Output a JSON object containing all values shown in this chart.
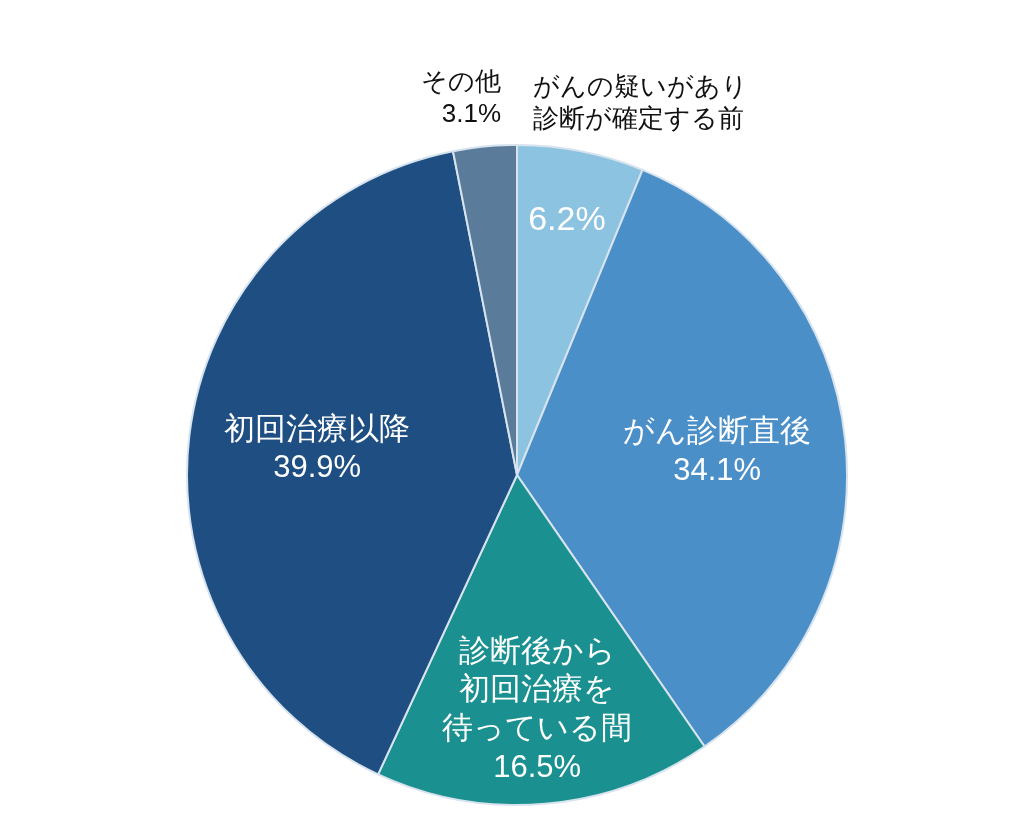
{
  "chart_data": {
    "type": "pie",
    "categories": [
      "がんの疑いがあり診断が確定する前",
      "がん診断直後",
      "診断後から初回治療を待っている間",
      "初回治療以降",
      "その他"
    ],
    "values": [
      6.2,
      34.1,
      16.5,
      39.9,
      3.1
    ],
    "colors": [
      "#8cc3e0",
      "#4b8fc9",
      "#1b9090",
      "#1f4f82",
      "#5b7b9b"
    ],
    "value_labels": [
      "6.2%",
      "34.1%",
      "16.5%",
      "39.9%",
      "3.1%"
    ]
  }
}
